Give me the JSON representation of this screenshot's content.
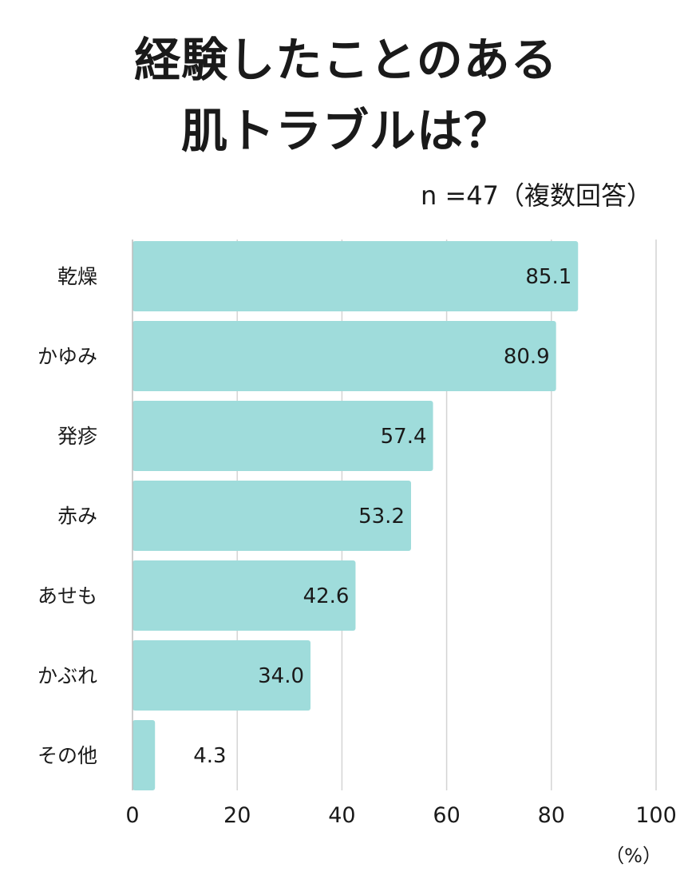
{
  "title_line1": "経験したことのある",
  "title_line2": "肌トラブルは？",
  "sample_note": "n =47（複数回答）",
  "unit_label": "（%）",
  "colors": {
    "bar": "#9fdcdb",
    "grid": "#d4d4d4",
    "text": "#1a1a1a"
  },
  "chart_data": {
    "type": "bar",
    "orientation": "horizontal",
    "categories": [
      "乾燥",
      "かゆみ",
      "発疹",
      "赤み",
      "あせも",
      "かぶれ",
      "その他"
    ],
    "values": [
      85.1,
      80.9,
      57.4,
      53.2,
      42.6,
      34.0,
      4.3
    ],
    "value_labels": [
      "85.1",
      "80.9",
      "57.4",
      "53.2",
      "42.6",
      "34.0",
      "4.3"
    ],
    "xlim": [
      0,
      100
    ],
    "xticks": [
      "0",
      "20",
      "40",
      "60",
      "80",
      "100"
    ],
    "grid": true
  }
}
